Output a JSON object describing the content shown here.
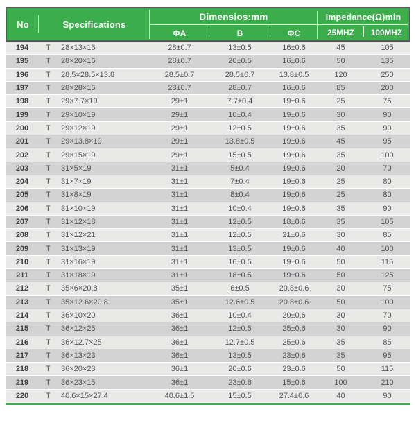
{
  "colors": {
    "header_green": "#3bad4b",
    "header_border": "#59595b",
    "header_text": "#ffffff",
    "row_light": "#e9eae8",
    "row_dark": "#d2d3d2",
    "body_text": "#55565a",
    "bottom_line_green": "#3bad4b"
  },
  "table": {
    "header": {
      "no": "No",
      "specifications": "Specifications",
      "dimensions_group": "Dimensios:mm",
      "impedance_group": "Impedance(Ω)min",
      "sub_phi_a": "ΦA",
      "sub_b": "B",
      "sub_phi_c": "ΦC",
      "sub_25mhz": "25MHZ",
      "sub_100mhz": "100MHZ"
    },
    "rows": [
      {
        "no": "194",
        "spec_type": "T",
        "spec_size": "28×13×16",
        "phi_a": "28±0.7",
        "b": "13±0.5",
        "phi_c": "16±0.6",
        "mhz25": "45",
        "mhz100": "105"
      },
      {
        "no": "195",
        "spec_type": "T",
        "spec_size": "28×20×16",
        "phi_a": "28±0.7",
        "b": "20±0.5",
        "phi_c": "16±0.6",
        "mhz25": "50",
        "mhz100": "135"
      },
      {
        "no": "196",
        "spec_type": "T",
        "spec_size": "28.5×28.5×13.8",
        "phi_a": "28.5±0.7",
        "b": "28.5±0.7",
        "phi_c": "13.8±0.5",
        "mhz25": "120",
        "mhz100": "250"
      },
      {
        "no": "197",
        "spec_type": "T",
        "spec_size": "28×28×16",
        "phi_a": "28±0.7",
        "b": "28±0.7",
        "phi_c": "16±0.6",
        "mhz25": "85",
        "mhz100": "200"
      },
      {
        "no": "198",
        "spec_type": "T",
        "spec_size": "29×7.7×19",
        "phi_a": "29±1",
        "b": "7.7±0.4",
        "phi_c": "19±0.6",
        "mhz25": "25",
        "mhz100": "75"
      },
      {
        "no": "199",
        "spec_type": "T",
        "spec_size": "29×10×19",
        "phi_a": "29±1",
        "b": "10±0.4",
        "phi_c": "19±0.6",
        "mhz25": "30",
        "mhz100": "90"
      },
      {
        "no": "200",
        "spec_type": "T",
        "spec_size": "29×12×19",
        "phi_a": "29±1",
        "b": "12±0.5",
        "phi_c": "19±0.6",
        "mhz25": "35",
        "mhz100": "90"
      },
      {
        "no": "201",
        "spec_type": "T",
        "spec_size": "29×13.8×19",
        "phi_a": "29±1",
        "b": "13.8±0.5",
        "phi_c": "19±0.6",
        "mhz25": "45",
        "mhz100": "95"
      },
      {
        "no": "202",
        "spec_type": "T",
        "spec_size": "29×15×19",
        "phi_a": "29±1",
        "b": "15±0.5",
        "phi_c": "19±0.6",
        "mhz25": "35",
        "mhz100": "100"
      },
      {
        "no": "203",
        "spec_type": "T",
        "spec_size": "31×5×19",
        "phi_a": "31±1",
        "b": "5±0.4",
        "phi_c": "19±0.6",
        "mhz25": "20",
        "mhz100": "70"
      },
      {
        "no": "204",
        "spec_type": "T",
        "spec_size": "31×7×19",
        "phi_a": "31±1",
        "b": "7±0.4",
        "phi_c": "19±0.6",
        "mhz25": "25",
        "mhz100": "80"
      },
      {
        "no": "205",
        "spec_type": "T",
        "spec_size": "31×8×19",
        "phi_a": "31±1",
        "b": "8±0.4",
        "phi_c": "19±0.6",
        "mhz25": "25",
        "mhz100": "80"
      },
      {
        "no": "206",
        "spec_type": "T",
        "spec_size": "31×10×19",
        "phi_a": "31±1",
        "b": "10±0.4",
        "phi_c": "19±0.6",
        "mhz25": "35",
        "mhz100": "90"
      },
      {
        "no": "207",
        "spec_type": "T",
        "spec_size": "31×12×18",
        "phi_a": "31±1",
        "b": "12±0.5",
        "phi_c": "18±0.6",
        "mhz25": "35",
        "mhz100": "105"
      },
      {
        "no": "208",
        "spec_type": "T",
        "spec_size": "31×12×21",
        "phi_a": "31±1",
        "b": "12±0.5",
        "phi_c": "21±0.6",
        "mhz25": "30",
        "mhz100": "85"
      },
      {
        "no": "209",
        "spec_type": "T",
        "spec_size": "31×13×19",
        "phi_a": "31±1",
        "b": "13±0.5",
        "phi_c": "19±0.6",
        "mhz25": "40",
        "mhz100": "100"
      },
      {
        "no": "210",
        "spec_type": "T",
        "spec_size": "31×16×19",
        "phi_a": "31±1",
        "b": "16±0.5",
        "phi_c": "19±0.6",
        "mhz25": "50",
        "mhz100": "115"
      },
      {
        "no": "211",
        "spec_type": "T",
        "spec_size": "31×18×19",
        "phi_a": "31±1",
        "b": "18±0.5",
        "phi_c": "19±0.6",
        "mhz25": "50",
        "mhz100": "125"
      },
      {
        "no": "212",
        "spec_type": "T",
        "spec_size": "35×6×20.8",
        "phi_a": "35±1",
        "b": "6±0.5",
        "phi_c": "20.8±0.6",
        "mhz25": "30",
        "mhz100": "75"
      },
      {
        "no": "213",
        "spec_type": "T",
        "spec_size": "35×12.6×20.8",
        "phi_a": "35±1",
        "b": "12.6±0.5",
        "phi_c": "20.8±0.6",
        "mhz25": "50",
        "mhz100": "100"
      },
      {
        "no": "214",
        "spec_type": "T",
        "spec_size": "36×10×20",
        "phi_a": "36±1",
        "b": "10±0.4",
        "phi_c": "20±0.6",
        "mhz25": "30",
        "mhz100": "70"
      },
      {
        "no": "215",
        "spec_type": "T",
        "spec_size": "36×12×25",
        "phi_a": "36±1",
        "b": "12±0.5",
        "phi_c": "25±0.6",
        "mhz25": "30",
        "mhz100": "90"
      },
      {
        "no": "216",
        "spec_type": "T",
        "spec_size": "36×12.7×25",
        "phi_a": "36±1",
        "b": "12.7±0.5",
        "phi_c": "25±0.6",
        "mhz25": "35",
        "mhz100": "85"
      },
      {
        "no": "217",
        "spec_type": "T",
        "spec_size": "36×13×23",
        "phi_a": "36±1",
        "b": "13±0.5",
        "phi_c": "23±0.6",
        "mhz25": "35",
        "mhz100": "95"
      },
      {
        "no": "218",
        "spec_type": "T",
        "spec_size": "36×20×23",
        "phi_a": "36±1",
        "b": "20±0.6",
        "phi_c": "23±0.6",
        "mhz25": "50",
        "mhz100": "115"
      },
      {
        "no": "219",
        "spec_type": "T",
        "spec_size": "36×23×15",
        "phi_a": "36±1",
        "b": "23±0.6",
        "phi_c": "15±0.6",
        "mhz25": "100",
        "mhz100": "210"
      },
      {
        "no": "220",
        "spec_type": "T",
        "spec_size": "40.6×15×27.4",
        "phi_a": "40.6±1.5",
        "b": "15±0.5",
        "phi_c": "27.4±0.6",
        "mhz25": "40",
        "mhz100": "90"
      }
    ]
  }
}
